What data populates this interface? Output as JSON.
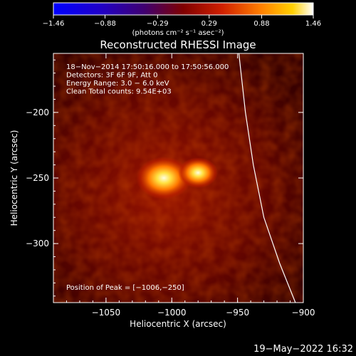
{
  "chart_data": {
    "type": "heatmap",
    "title": "Reconstructed RHESSI Image",
    "xlabel": "Heliocentric X (arcsec)",
    "ylabel": "Heliocentric Y (arcsec)",
    "xlim": [
      -1090,
      -900
    ],
    "ylim": [
      -345,
      -155
    ],
    "x_ticks": [
      {
        "value": -1050,
        "label": "−1050"
      },
      {
        "value": -1000,
        "label": "−1000"
      },
      {
        "value": -950,
        "label": "−950"
      },
      {
        "value": -900,
        "label": "−900"
      }
    ],
    "y_ticks": [
      {
        "value": -200,
        "label": "−200"
      },
      {
        "value": -250,
        "label": "−250"
      },
      {
        "value": -300,
        "label": "−300"
      }
    ],
    "colorbar": {
      "min": -1.46,
      "max": 1.46,
      "ticks": [
        {
          "value": -1.46,
          "label": "−1.46"
        },
        {
          "value": -0.88,
          "label": "−0.88"
        },
        {
          "value": -0.29,
          "label": "−0.29"
        },
        {
          "value": 0.29,
          "label": "0.29"
        },
        {
          "value": 0.88,
          "label": "0.88"
        },
        {
          "value": 1.46,
          "label": "1.46"
        }
      ],
      "unit_label": "(photons cm⁻² s⁻¹ asec⁻²)"
    },
    "info_lines": [
      "18−Nov−2014 17:50:16.000 to 17:50:56.000",
      "Detectors: 3F 6F 9F, Att 0",
      "Energy Range: 3.0 − 6.0 keV",
      "Clean    Total counts: 9.54E+03"
    ],
    "peak_text": "Position of Peak = [−1006,−250]",
    "sources": [
      {
        "x": -1006,
        "y": -250,
        "value": 1.46
      },
      {
        "x": -980,
        "y": -246,
        "value": 1.05
      }
    ],
    "limb_curve": [
      {
        "x": -949,
        "y": -155
      },
      {
        "x": -944,
        "y": -200
      },
      {
        "x": -938,
        "y": -240
      },
      {
        "x": -930,
        "y": -280
      },
      {
        "x": -918,
        "y": -315
      },
      {
        "x": -906,
        "y": -345
      }
    ]
  },
  "footer_date": "19−May−2022 16:32"
}
